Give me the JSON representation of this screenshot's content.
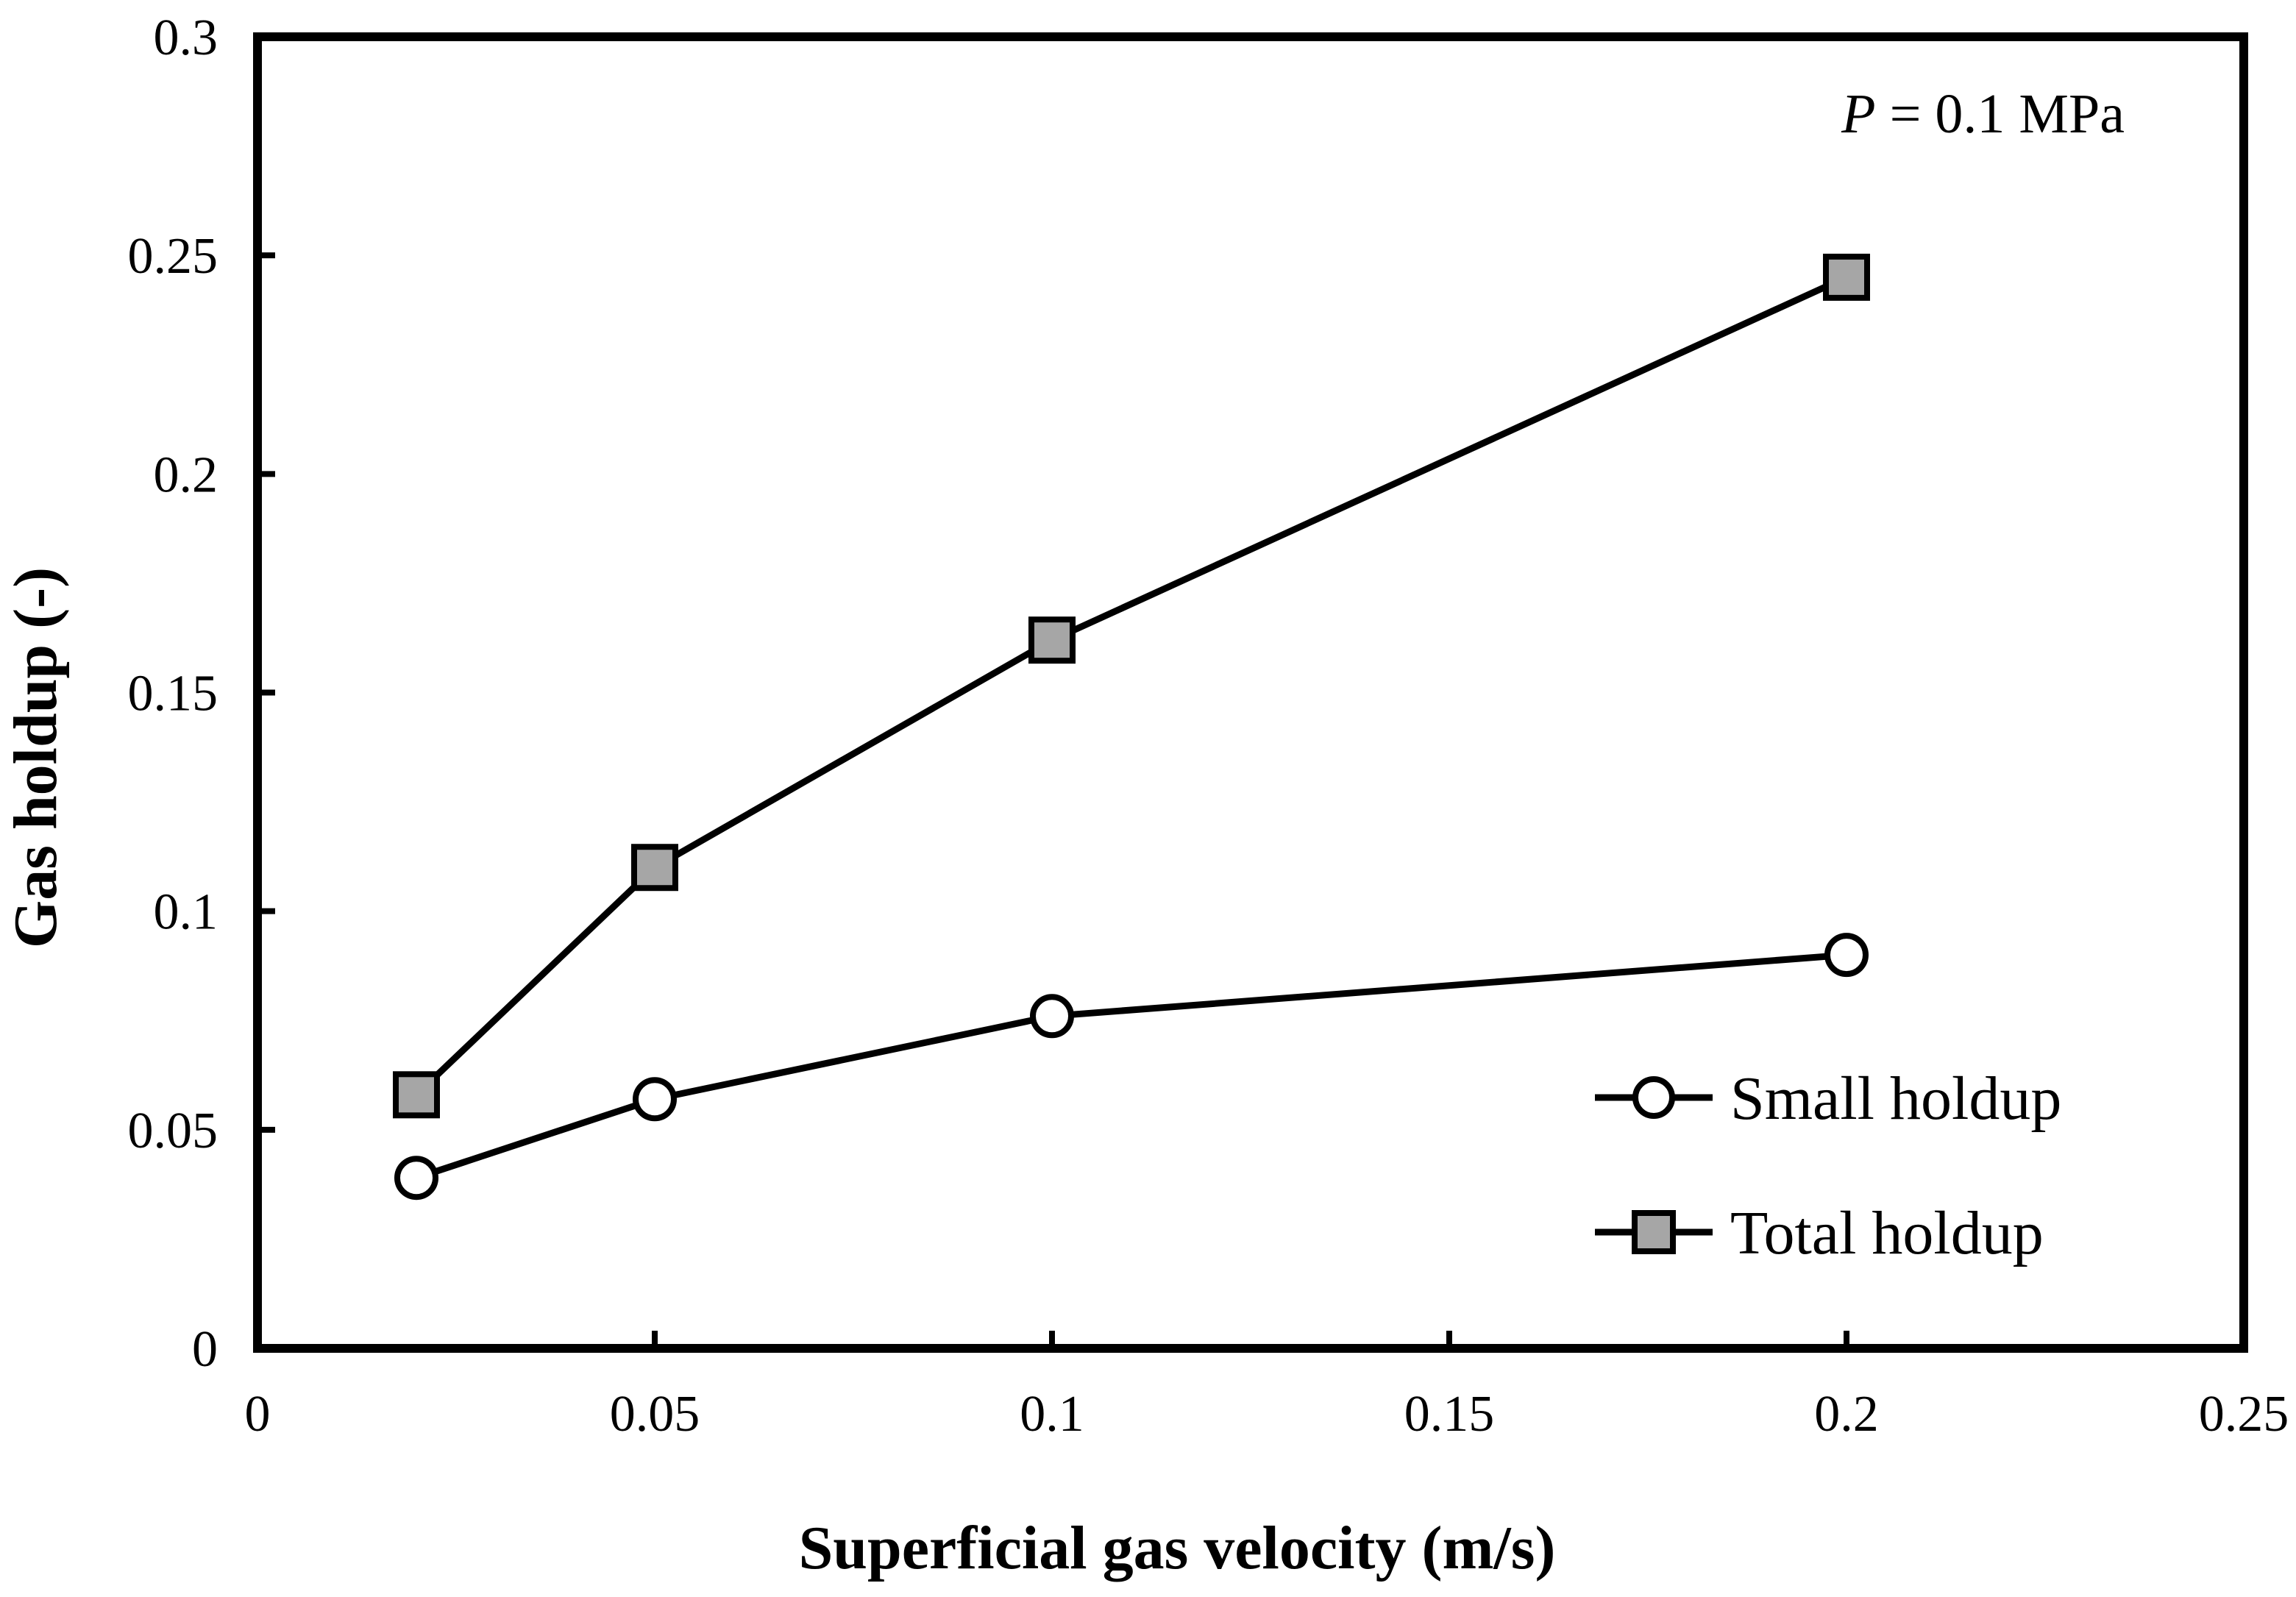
{
  "chart_data": {
    "type": "line",
    "title": "",
    "xlabel": "Superficial gas velocity (m/s)",
    "ylabel": "Gas holdup (-)",
    "xlim": [
      0,
      0.25
    ],
    "ylim": [
      0,
      0.3
    ],
    "xticks": [
      0,
      0.05,
      0.1,
      0.15,
      0.2,
      0.25
    ],
    "yticks": [
      0,
      0.05,
      0.1,
      0.15,
      0.2,
      0.25,
      0.3
    ],
    "xtick_labels": [
      "0",
      "0.05",
      "0.1",
      "0.15",
      "0.2",
      "0.25"
    ],
    "ytick_labels": [
      "0",
      "0.05",
      "0.1",
      "0.15",
      "0.2",
      "0.25",
      "0.3"
    ],
    "grid": false,
    "legend_position": "bottom-right",
    "annotation": {
      "variable": "P",
      "text": " = 0.1 MPa"
    },
    "series": [
      {
        "name": "Small holdup",
        "marker": "circle",
        "marker_fill": "#ffffff",
        "x": [
          0.02,
          0.05,
          0.1,
          0.2
        ],
        "y": [
          0.039,
          0.057,
          0.076,
          0.09
        ]
      },
      {
        "name": "Total holdup",
        "marker": "square",
        "marker_fill": "#a6a6a6",
        "x": [
          0.02,
          0.05,
          0.1,
          0.2
        ],
        "y": [
          0.058,
          0.11,
          0.162,
          0.245
        ]
      }
    ],
    "colors": {
      "line": "#000000",
      "background": "#ffffff"
    }
  }
}
